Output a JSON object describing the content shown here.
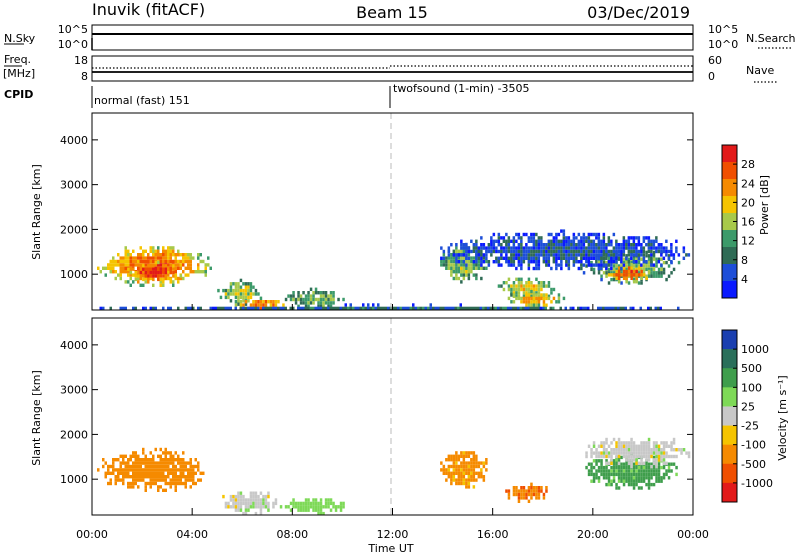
{
  "header": {
    "station": "Inuvik (fitACF)",
    "beam": "Beam 15",
    "date": "03/Dec/2019"
  },
  "top_panels": {
    "nsky_label": "N.Sky",
    "nsky_ticks": [
      "10^5",
      "10^0"
    ],
    "nsearch_label": "N.Search",
    "nsearch_ticks": [
      "10^5",
      "10^0"
    ],
    "freq_label_1": "Freq.",
    "freq_label_2": "[MHz]",
    "freq_ticks": [
      "18",
      "8"
    ],
    "nave_label": "Nave",
    "nave_ticks": [
      "60",
      "0"
    ],
    "cpid_label": "CPID",
    "cpid_segments": [
      {
        "start_hour": 0,
        "text": "normal (fast) 151"
      },
      {
        "start_hour": 12,
        "text": "twofsound (1-min) -3505"
      }
    ]
  },
  "chart_data": [
    {
      "type": "heatmap",
      "name": "power",
      "ylabel": "Slant Range [km]",
      "yticks": [
        "1000",
        "2000",
        "3000",
        "4000"
      ],
      "ylim": [
        200,
        4600
      ],
      "xlim_hours": [
        0,
        24
      ],
      "colorbar": {
        "label": "Power [dB]",
        "ticks": [
          "4",
          "8",
          "12",
          "16",
          "20",
          "24",
          "28"
        ],
        "range": [
          0,
          32
        ],
        "colors": [
          "#0a1aff",
          "#1d4ed8",
          "#2f6b55",
          "#3c9a6a",
          "#a8c94a",
          "#f5c400",
          "#f58a00",
          "#f04f00",
          "#e21a1a"
        ]
      },
      "regions": [
        {
          "t0": 0.1,
          "t1": 4.7,
          "r0": 750,
          "r1": 1700,
          "level": 0.8
        },
        {
          "t0": 1.3,
          "t1": 3.6,
          "r0": 850,
          "r1": 1300,
          "level": 0.95
        },
        {
          "t0": 5.0,
          "t1": 6.7,
          "r0": 350,
          "r1": 900,
          "level": 0.55
        },
        {
          "t0": 5.6,
          "t1": 7.6,
          "r0": 220,
          "r1": 500,
          "level": 0.85
        },
        {
          "t0": 7.5,
          "t1": 10.2,
          "r0": 250,
          "r1": 700,
          "level": 0.45
        },
        {
          "t0": 13.8,
          "t1": 15.8,
          "r0": 800,
          "r1": 1700,
          "level": 0.5
        },
        {
          "t0": 16.2,
          "t1": 18.5,
          "r0": 450,
          "r1": 1000,
          "level": 0.6
        },
        {
          "t0": 16.5,
          "t1": 18.8,
          "r0": 300,
          "r1": 650,
          "level": 0.7
        },
        {
          "t0": 19.5,
          "t1": 23.5,
          "r0": 800,
          "r1": 1600,
          "level": 0.45
        },
        {
          "t0": 20.5,
          "t1": 22.3,
          "r0": 850,
          "r1": 1250,
          "level": 0.85
        },
        {
          "t0": 13.5,
          "t1": 24,
          "r0": 1100,
          "r1": 2000,
          "level": 0.2
        },
        {
          "t0": 0,
          "t1": 24,
          "r0": 200,
          "r1": 350,
          "level": 0.25
        }
      ]
    },
    {
      "type": "heatmap",
      "name": "velocity",
      "ylabel": "Slant Range [km]",
      "yticks": [
        "1000",
        "2000",
        "3000",
        "4000"
      ],
      "ylim": [
        200,
        4600
      ],
      "xlim_hours": [
        0,
        24
      ],
      "colorbar": {
        "label": "Velocity [m s⁻¹]",
        "ticks": [
          "1000",
          "500",
          "100",
          "25",
          "-25",
          "-100",
          "-500",
          "-1000"
        ],
        "colors": [
          "#1a3fb0",
          "#2a6f5a",
          "#3f9e4c",
          "#7ed957",
          "#c8c8c8",
          "#f5c400",
          "#f58a00",
          "#f04f00",
          "#e21a1a"
        ]
      },
      "regions": [
        {
          "t0": 0.1,
          "t1": 4.7,
          "r0": 750,
          "r1": 1700,
          "vel": -300
        },
        {
          "t0": 5.0,
          "t1": 7.5,
          "r0": 250,
          "r1": 800,
          "vel": 0
        },
        {
          "t0": 7.5,
          "t1": 10.2,
          "r0": 250,
          "r1": 650,
          "vel": 60
        },
        {
          "t0": 13.8,
          "t1": 15.8,
          "r0": 800,
          "r1": 1700,
          "vel": -150
        },
        {
          "t0": 16.4,
          "t1": 18.3,
          "r0": 500,
          "r1": 1000,
          "vel": -400
        },
        {
          "t0": 19.5,
          "t1": 23.5,
          "r0": 800,
          "r1": 1600,
          "vel": 150
        },
        {
          "t0": 19.5,
          "t1": 24,
          "r0": 1300,
          "r1": 2000,
          "vel": 0
        }
      ]
    }
  ],
  "x_axis": {
    "ticks": [
      "00:00",
      "04:00",
      "08:00",
      "12:00",
      "16:00",
      "20:00",
      "00:00"
    ],
    "label": "Time UT"
  }
}
